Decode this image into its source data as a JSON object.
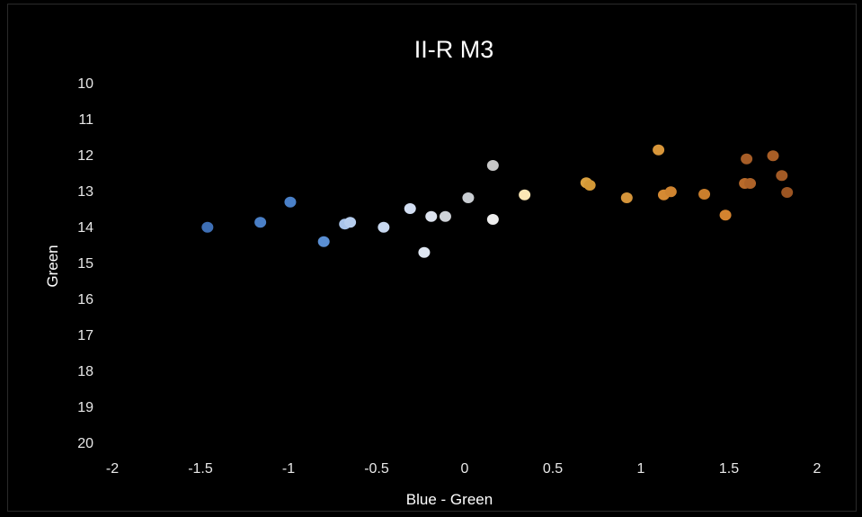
{
  "chart_data": {
    "type": "scatter",
    "title": "II-R M3",
    "xlabel": "Blue - Green",
    "ylabel": "Green",
    "xlim": [
      -2,
      2
    ],
    "ylim": [
      10,
      20
    ],
    "y_inverted": true,
    "x_ticks": [
      "-2",
      "-1.5",
      "-1",
      "-0.5",
      "0",
      "0.5",
      "1",
      "1.5",
      "2"
    ],
    "y_ticks": [
      "10",
      "11",
      "12",
      "13",
      "14",
      "15",
      "16",
      "17",
      "18",
      "19",
      "20"
    ],
    "grid": false,
    "legend": "none",
    "background": "#000000",
    "points": [
      {
        "x": -1.46,
        "y": 14.02,
        "color": "#3e6fb5"
      },
      {
        "x": -1.16,
        "y": 13.88,
        "color": "#4a7fc6"
      },
      {
        "x": -0.99,
        "y": 13.32,
        "color": "#4a80c8"
      },
      {
        "x": -0.8,
        "y": 14.42,
        "color": "#5a8fd3"
      },
      {
        "x": -0.68,
        "y": 13.93,
        "color": "#a9c4ea"
      },
      {
        "x": -0.65,
        "y": 13.88,
        "color": "#b6cdee"
      },
      {
        "x": -0.46,
        "y": 14.02,
        "color": "#c8d8f0"
      },
      {
        "x": -0.31,
        "y": 13.5,
        "color": "#d2def2"
      },
      {
        "x": -0.23,
        "y": 14.72,
        "color": "#dfe6f2"
      },
      {
        "x": -0.19,
        "y": 13.72,
        "color": "#dde3ee"
      },
      {
        "x": -0.11,
        "y": 13.72,
        "color": "#cfd3d8"
      },
      {
        "x": 0.02,
        "y": 13.2,
        "color": "#c9cdd2"
      },
      {
        "x": 0.16,
        "y": 12.3,
        "color": "#c8c8c8"
      },
      {
        "x": 0.16,
        "y": 13.8,
        "color": "#eeeeee"
      },
      {
        "x": 0.34,
        "y": 13.12,
        "color": "#fbe7b5"
      },
      {
        "x": 0.69,
        "y": 12.78,
        "color": "#d9a03f"
      },
      {
        "x": 0.71,
        "y": 12.85,
        "color": "#d39836"
      },
      {
        "x": 0.92,
        "y": 13.2,
        "color": "#d4943a"
      },
      {
        "x": 1.1,
        "y": 11.87,
        "color": "#d8963a"
      },
      {
        "x": 1.13,
        "y": 13.12,
        "color": "#d58a33"
      },
      {
        "x": 1.17,
        "y": 13.03,
        "color": "#cf8430"
      },
      {
        "x": 1.36,
        "y": 13.1,
        "color": "#c97e2c"
      },
      {
        "x": 1.48,
        "y": 13.68,
        "color": "#d4832f"
      },
      {
        "x": 1.59,
        "y": 12.8,
        "color": "#b86a2a"
      },
      {
        "x": 1.62,
        "y": 12.8,
        "color": "#ad6228"
      },
      {
        "x": 1.6,
        "y": 12.12,
        "color": "#a65d27"
      },
      {
        "x": 1.75,
        "y": 12.03,
        "color": "#a85e26"
      },
      {
        "x": 1.8,
        "y": 12.58,
        "color": "#a25a25"
      },
      {
        "x": 1.83,
        "y": 13.05,
        "color": "#9c5522"
      }
    ]
  }
}
